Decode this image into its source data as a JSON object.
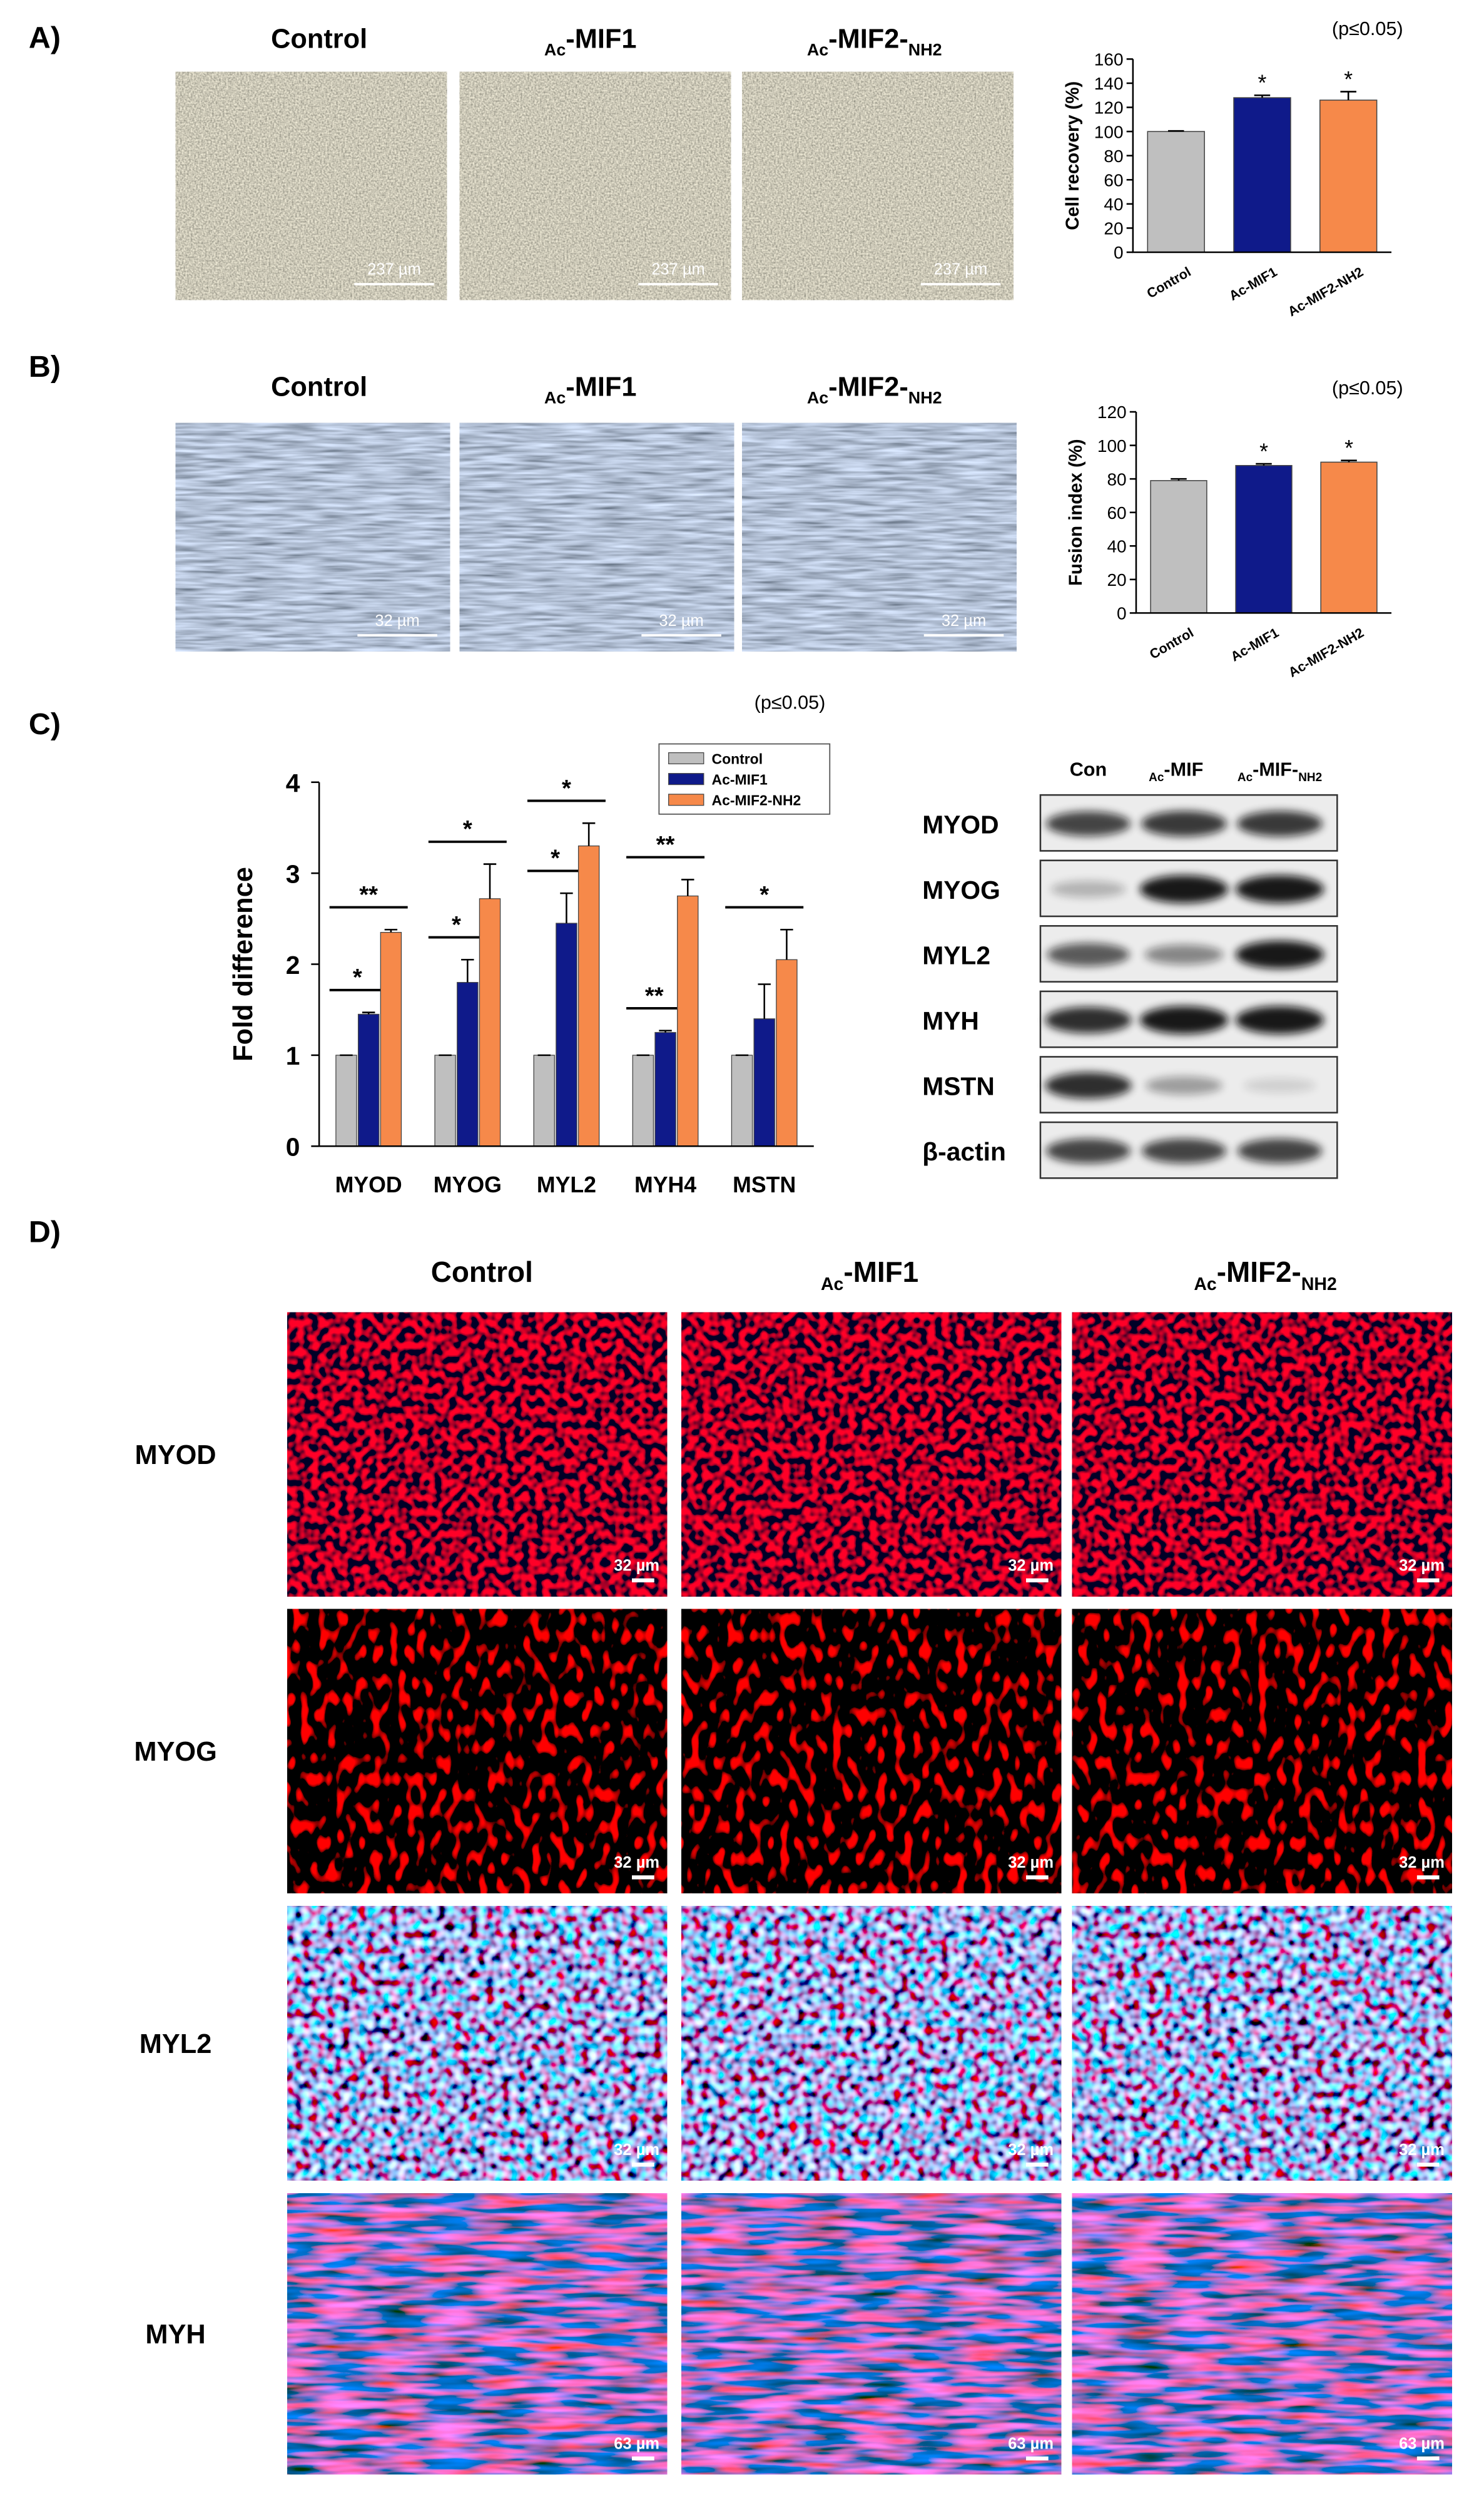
{
  "panel_labels": [
    "A)",
    "B)",
    "C)",
    "D)"
  ],
  "panel_a": {
    "headers": [
      [
        {
          "text": "Control"
        }
      ],
      [
        {
          "text": "Ac",
          "sub": true
        },
        {
          "text": "-MIF1"
        }
      ],
      [
        {
          "text": "Ac",
          "sub": true
        },
        {
          "text": "-MIF2-"
        },
        {
          "text": "NH2",
          "sub": true
        }
      ]
    ],
    "scale_labels": [
      "237 µm",
      "237 µm",
      "237 µm"
    ]
  },
  "panel_b": {
    "headers": [
      [
        {
          "text": "Control"
        }
      ],
      [
        {
          "text": "Ac",
          "sub": true
        },
        {
          "text": "-MIF1"
        }
      ],
      [
        {
          "text": "Ac",
          "sub": true
        },
        {
          "text": "-MIF2-"
        },
        {
          "text": "NH2",
          "sub": true
        }
      ]
    ],
    "scale_labels": [
      "32 µm",
      "32 µm",
      "32 µm"
    ]
  },
  "blot": {
    "columns": [
      [
        {
          "text": "Con"
        }
      ],
      [
        {
          "text": "Ac",
          "sub": true
        },
        {
          "text": "-MIF"
        }
      ],
      [
        {
          "text": "Ac",
          "sub": true
        },
        {
          "text": "-MIF-"
        },
        {
          "text": "NH2",
          "sub": true
        }
      ]
    ],
    "rows": [
      "MYOD",
      "MYOG",
      "MYL2",
      "MYH",
      "MSTN",
      "β-actin"
    ]
  },
  "panel_d": {
    "headers": [
      [
        {
          "text": "Control"
        }
      ],
      [
        {
          "text": "Ac",
          "sub": true
        },
        {
          "text": "-MIF1"
        }
      ],
      [
        {
          "text": "Ac",
          "sub": true
        },
        {
          "text": "-MIF2-"
        },
        {
          "text": "NH2",
          "sub": true
        }
      ]
    ],
    "rows": [
      "MYOD",
      "MYOG",
      "MYL2",
      "MYH"
    ],
    "scale_labels": [
      [
        "32 µm",
        "32 µm",
        "32 µm"
      ],
      [
        "32 µm",
        "32 µm",
        "32 µm"
      ],
      [
        "32 µm",
        "32 µm",
        "32 µm"
      ],
      [
        "63 µm",
        "63 µm",
        "63 µm"
      ]
    ]
  },
  "chart_data": [
    {
      "type": "bar",
      "y_label": "Cell recovery (%)",
      "annotation": "(p≤0.05)",
      "categories": [
        "Control",
        "Ac-MIF1",
        "Ac-MIF2-NH2"
      ],
      "values": [
        100,
        128,
        126
      ],
      "errors": [
        0.5,
        2,
        7
      ],
      "significance": [
        null,
        "*",
        "*"
      ],
      "colors": [
        "#bfbfbf",
        "#0f1a8a",
        "#f6894a"
      ],
      "ylim": [
        0,
        160
      ],
      "yticks": [
        0,
        20,
        40,
        60,
        80,
        100,
        120,
        140,
        160
      ]
    },
    {
      "type": "bar",
      "y_label": "Fusion index (%)",
      "annotation": "(p≤0.05)",
      "categories": [
        "Control",
        "Ac-MIF1",
        "Ac-MIF2-NH2"
      ],
      "values": [
        79,
        88,
        90
      ],
      "errors": [
        1,
        1,
        1
      ],
      "significance": [
        null,
        "*",
        "*"
      ],
      "colors": [
        "#bfbfbf",
        "#0f1a8a",
        "#f6894a"
      ],
      "ylim": [
        0,
        120
      ],
      "yticks": [
        0,
        20,
        40,
        60,
        80,
        100,
        120
      ]
    },
    {
      "type": "grouped_bar",
      "y_label": "Fold difference",
      "annotation": "(p≤0.05)",
      "categories": [
        "MYOD",
        "MYOG",
        "MYL2",
        "MYH4",
        "MSTN"
      ],
      "series": [
        {
          "name": "Control",
          "color": "#bfbfbf",
          "values": [
            1,
            1,
            1,
            1,
            1
          ],
          "errors": [
            0,
            0,
            0,
            0,
            0
          ]
        },
        {
          "name": "Ac-MIF1",
          "color": "#0f1a8a",
          "values": [
            1.45,
            1.8,
            2.45,
            1.25,
            1.4
          ],
          "errors": [
            0.02,
            0.25,
            0.33,
            0.02,
            0.38
          ],
          "significance": [
            "*",
            "*",
            "*",
            "**",
            null
          ]
        },
        {
          "name": "Ac-MIF2-NH2",
          "color": "#f6894a",
          "values": [
            2.35,
            2.72,
            3.3,
            2.75,
            2.05
          ],
          "errors": [
            0.03,
            0.38,
            0.25,
            0.18,
            0.33
          ],
          "significance": [
            "**",
            "*",
            "*",
            "**",
            "*"
          ]
        }
      ],
      "ylim": [
        0,
        4
      ],
      "yticks": [
        0,
        1,
        2,
        3,
        4
      ],
      "legend": "top-right"
    }
  ]
}
